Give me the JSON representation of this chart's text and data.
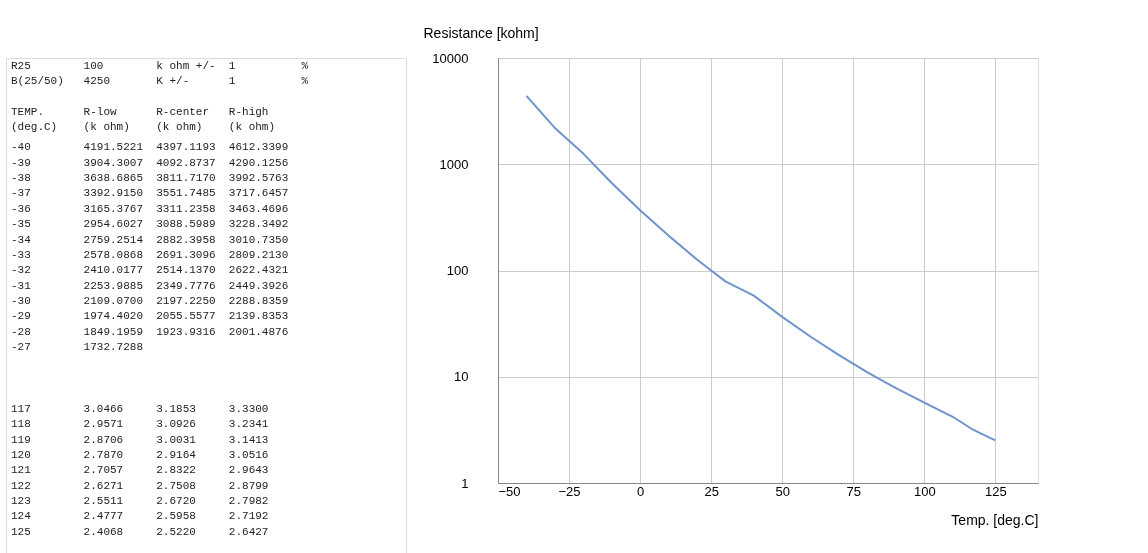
{
  "chart_data": [
    {
      "type": "other",
      "annotations": [
        "R25       100    k ohm +/-    1     %",
        "B(25/50)  4250   K +/-        1     %",
        "TEMP.     R-low      R-center   R-high",
        "(deg.C)   (k ohm)    (k ohm)    (k ohm)",
        "-40       4191.5221  4397.1193  4612.3399",
        "-39       3904.3007  4092.8737  4290.1256",
        "-38       3638.6865  3811.7170  3992.5763",
        "-37       3392.9150  3551.7485  3717.6457",
        "-36       3165.3767  3311.2358  3463.4696",
        "-35       2954.6027  3088.5989  3228.3492",
        "-34       2759.2514  2882.3958  3010.7350",
        "-33       2578.0868  2691.3096  2809.2130",
        "-32       2410.0177  2514.1370  2622.4321",
        "-31       2253.9885  2349.7776  2449.3926",
        "-30       2109.0700  2197.2250  2288.8359",
        "-29       1974.4020  2055.5577  2139.8353",
        "-28       1849.1959  1923.9316  2001.4876",
        "-27       1732.7288",
        "117       3.0466     3.1853     3.3300",
        "118       2.9571     3.0926     3.2341",
        "119       2.8706     3.0031     3.1413",
        "120       2.7870     2.9164     3.0516",
        "121       2.7057     2.8322     2.9643",
        "122       2.6271     2.7508     2.8799",
        "123       2.5511     2.6720     2.7982",
        "124       2.4777     2.5958     2.7192",
        "125       2.4068     2.5220     2.6427"
      ]
    },
    {
      "type": "line",
      "xlabel": "Temp. [deg.C]",
      "ylabel": "Resistance [kohm]",
      "log": "y",
      "grid": true,
      "x": [
        -40,
        -30,
        -20,
        -10,
        0,
        10,
        20,
        25,
        30,
        40,
        50,
        60,
        70,
        80,
        90,
        100,
        110,
        117,
        120,
        125
      ],
      "series": [
        {
          "color": "#6f94cc",
          "values": [
            4397,
            2197,
            1260,
            666,
            369,
            213,
            127,
            100,
            79,
            58,
            36.6,
            23.8,
            16,
            11,
            7.8,
            5.7,
            4.2,
            3.19,
            2.92,
            2.52
          ]
        }
      ],
      "xlim": [
        -50,
        140
      ],
      "xticks": [
        -50,
        -25,
        0,
        25,
        50,
        75,
        100,
        125
      ],
      "ylim": [
        1,
        10000
      ],
      "yticks": [
        1,
        10,
        100,
        1000,
        10000
      ]
    }
  ]
}
